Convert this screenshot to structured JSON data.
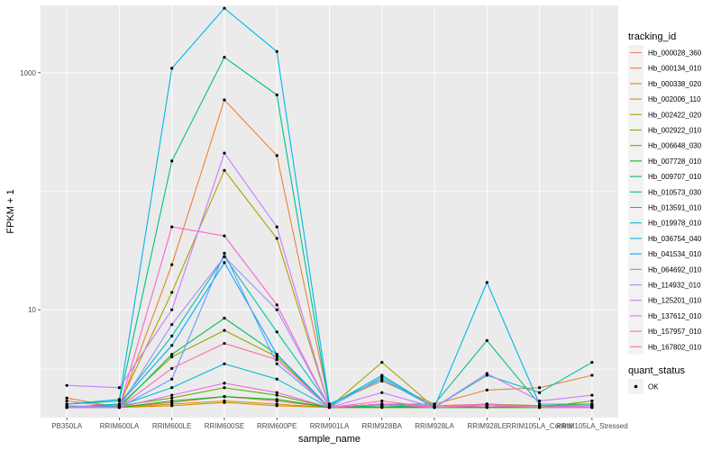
{
  "chart_data": {
    "type": "line",
    "xlabel": "sample_name",
    "ylabel": "FPKM + 1",
    "y_scale": "log10",
    "ylim": [
      1.23,
      3700
    ],
    "y_ticks": [
      10,
      1000
    ],
    "y_tick_labels": [
      "10",
      "1000"
    ],
    "grid": true,
    "panel_background": "#ebebeb",
    "legend_position": "right",
    "categories": [
      "PB350LA",
      "RRIM600LA",
      "RRIM600LE",
      "RRIM600SE",
      "RRIM600PE",
      "RRIM901LA",
      "RRIM928BA",
      "RRIM928LA",
      "RRIM928LE",
      "RRIM105LA_Control",
      "RRIM105LA_Stressed"
    ],
    "legend_color_title": "tracking_id",
    "legend_shape_title": "quant_status",
    "legend_shape_entries": [
      "OK"
    ],
    "series": [
      {
        "name": "Hb_000028_360",
        "color": "#F8766D",
        "values": [
          1.7,
          1.5,
          1.65,
          1.85,
          1.7,
          1.5,
          1.6,
          1.55,
          1.6,
          1.55,
          1.55
        ]
      },
      {
        "name": "Hb_000134_010",
        "color": "#EC8239",
        "values": [
          1.8,
          1.5,
          24,
          590,
          200,
          1.6,
          2.5,
          1.6,
          2.1,
          2.2,
          2.8
        ]
      },
      {
        "name": "Hb_000338_020",
        "color": "#DB8E00",
        "values": [
          1.5,
          1.5,
          1.55,
          1.65,
          1.55,
          1.5,
          1.5,
          1.5,
          1.5,
          1.5,
          1.5
        ]
      },
      {
        "name": "Hb_002006_110",
        "color": "#C79800",
        "values": [
          1.5,
          1.5,
          1.6,
          1.7,
          1.6,
          1.5,
          1.5,
          1.5,
          1.5,
          1.5,
          1.5
        ]
      },
      {
        "name": "Hb_002422_020",
        "color": "#AEA200",
        "values": [
          1.5,
          1.6,
          14,
          150,
          40,
          1.5,
          3.6,
          1.5,
          1.6,
          1.5,
          1.5
        ]
      },
      {
        "name": "Hb_002922_010",
        "color": "#8FAA00",
        "values": [
          1.5,
          1.55,
          4,
          6.7,
          4,
          1.5,
          1.6,
          1.5,
          1.6,
          1.55,
          1.6
        ]
      },
      {
        "name": "Hb_006648_030",
        "color": "#64B200",
        "values": [
          1.5,
          1.55,
          1.8,
          2.2,
          1.9,
          1.5,
          1.6,
          1.5,
          1.55,
          1.5,
          1.7
        ]
      },
      {
        "name": "Hb_007728_010",
        "color": "#00B81B",
        "values": [
          1.5,
          1.5,
          1.7,
          1.85,
          1.75,
          1.5,
          1.5,
          1.5,
          1.5,
          1.5,
          1.5
        ]
      },
      {
        "name": "Hb_009707_010",
        "color": "#00BD5C",
        "values": [
          1.5,
          1.5,
          4.2,
          8.5,
          4.2,
          1.5,
          1.55,
          1.5,
          1.5,
          1.5,
          1.5
        ]
      },
      {
        "name": "Hb_010573_030",
        "color": "#00C08E",
        "values": [
          1.6,
          1.7,
          180,
          1350,
          650,
          1.5,
          1.6,
          1.6,
          5.5,
          1.6,
          1.6
        ]
      },
      {
        "name": "Hb_013591_010",
        "color": "#00C1B2",
        "values": [
          1.5,
          1.6,
          6,
          28,
          6.5,
          1.55,
          2.8,
          1.5,
          2.8,
          2.0,
          3.6
        ]
      },
      {
        "name": "Hb_019978_010",
        "color": "#00BFD1",
        "values": [
          1.5,
          1.55,
          2.2,
          3.5,
          2.6,
          1.5,
          1.6,
          1.5,
          1.6,
          1.5,
          1.5
        ]
      },
      {
        "name": "Hb_036754_040",
        "color": "#00B8E7",
        "values": [
          1.6,
          1.75,
          1090,
          3500,
          1510,
          1.6,
          2.6,
          1.5,
          17,
          1.6,
          1.6
        ]
      },
      {
        "name": "Hb_041534_010",
        "color": "#00ABFD",
        "values": [
          1.5,
          1.6,
          5,
          25,
          4.2,
          1.5,
          1.6,
          1.5,
          1.6,
          1.5,
          1.55
        ]
      },
      {
        "name": "Hb_064692_010",
        "color": "#619CFF",
        "values": [
          1.5,
          1.5,
          2.6,
          30,
          3.5,
          1.5,
          2.7,
          1.5,
          1.6,
          1.5,
          1.55
        ]
      },
      {
        "name": "Hb_114932_010",
        "color": "#A58AFF",
        "values": [
          1.55,
          1.5,
          7.5,
          28,
          10,
          1.5,
          1.6,
          1.5,
          1.6,
          1.5,
          1.5
        ]
      },
      {
        "name": "Hb_125201_010",
        "color": "#D078FF",
        "values": [
          2.3,
          2.2,
          10,
          210,
          50,
          1.5,
          2.0,
          1.5,
          2.9,
          1.7,
          1.9
        ]
      },
      {
        "name": "Hb_137612_010",
        "color": "#EC69EF",
        "values": [
          1.5,
          1.5,
          1.9,
          2.4,
          2.0,
          1.5,
          1.6,
          1.5,
          1.6,
          1.5,
          1.55
        ]
      },
      {
        "name": "Hb_157957_010",
        "color": "#FA62D5",
        "values": [
          1.5,
          1.5,
          50,
          42,
          11,
          1.5,
          1.6,
          1.5,
          1.55,
          1.5,
          1.5
        ]
      },
      {
        "name": "Hb_167802_010",
        "color": "#FF6BAE",
        "values": [
          1.5,
          1.5,
          3.2,
          5.2,
          3.8,
          1.5,
          1.7,
          1.5,
          1.6,
          1.5,
          1.5
        ]
      }
    ]
  }
}
